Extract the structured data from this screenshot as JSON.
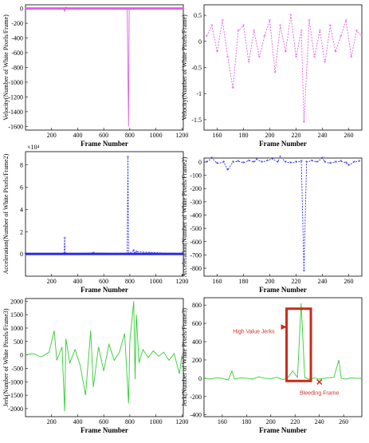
{
  "colors": {
    "velocity": "#e060e0",
    "acceleration": "#2a2ae0",
    "jerk": "#33cc33",
    "annotation": "#cc2a1a"
  },
  "chart_data": [
    {
      "type": "line",
      "panel": "velocity-full",
      "xlabel": "Frame Number",
      "ylabel": "Velocity(Number of White Pixels/Frame)",
      "xlim": [
        0,
        1210
      ],
      "ylim": [
        -1650,
        50
      ],
      "xticks": [
        "200",
        "400",
        "600",
        "800",
        "1000",
        "1200"
      ],
      "yticks": [
        "0",
        "-200",
        "-400",
        "-600",
        "-800",
        "-1000",
        "-1200",
        "-1400",
        "-1600"
      ],
      "series": [
        {
          "x": [
            0,
            290,
            300,
            310,
            320,
            780,
            790,
            795,
            800,
            1200
          ],
          "y": [
            0,
            0,
            -40,
            20,
            0,
            0,
            -1600,
            0,
            0,
            0
          ]
        }
      ]
    },
    {
      "type": "line",
      "panel": "velocity-zoom",
      "xlabel": "Frame Number",
      "ylabel": "Velocity(Number of White Pixels/Frame)",
      "xlim": [
        150,
        270
      ],
      "ylim": [
        -1.7,
        0.7
      ],
      "xticks": [
        "160",
        "180",
        "200",
        "220",
        "240",
        "260"
      ],
      "yticks": [
        "0.5",
        "0",
        "-0.5",
        "-1",
        "-1.5"
      ],
      "series": [
        {
          "x": [
            152,
            156,
            160,
            164,
            168,
            172,
            176,
            180,
            184,
            188,
            192,
            196,
            200,
            204,
            208,
            212,
            216,
            220,
            224,
            226,
            230,
            234,
            238,
            242,
            246,
            250,
            254,
            258,
            262,
            266,
            270
          ],
          "y": [
            0.1,
            0.3,
            -0.2,
            0.4,
            -0.3,
            -0.9,
            0.2,
            0.3,
            -0.4,
            0.2,
            -0.3,
            0.1,
            0.4,
            -0.6,
            0.3,
            -0.2,
            0.5,
            -0.3,
            0.2,
            -1.55,
            0.4,
            -0.3,
            0.2,
            -0.4,
            0.3,
            -0.2,
            0.1,
            0.4,
            -0.3,
            0.2,
            0.1
          ]
        }
      ]
    },
    {
      "type": "line",
      "panel": "acceleration-full",
      "xlabel": "Frame Number",
      "ylabel": "Acceleration(Number of White Pixels/Frame2)",
      "multiplier": "×10⁴",
      "xlim": [
        0,
        1210
      ],
      "ylim": [
        -2,
        9.2
      ],
      "xticks": [
        "200",
        "400",
        "600",
        "800",
        "1000",
        "1200"
      ],
      "yticks": [
        "8",
        "6",
        "4",
        "2",
        "0"
      ],
      "series": [
        {
          "x": [
            0,
            295,
            300,
            305,
            520,
            780,
            785,
            790,
            830,
            840,
            850,
            1200
          ],
          "y": [
            0,
            0,
            1.4,
            0,
            0.1,
            0,
            8.7,
            0,
            0.3,
            0,
            0.2,
            0
          ]
        }
      ]
    },
    {
      "type": "line",
      "panel": "acceleration-zoom",
      "xlabel": "Frame Number",
      "ylabel": "Acceleration(Number of White Pixels/Frame2)",
      "xlim": [
        150,
        270
      ],
      "ylim": [
        -860,
        30
      ],
      "xticks": [
        "160",
        "180",
        "200",
        "220",
        "240",
        "260"
      ],
      "yticks": [
        "0",
        "-100",
        "-200",
        "-300",
        "-400",
        "-500",
        "-600",
        "-700",
        "-800"
      ],
      "series": [
        {
          "x": [
            152,
            156,
            160,
            165,
            168,
            172,
            176,
            180,
            184,
            188,
            190,
            194,
            198,
            202,
            206,
            208,
            212,
            216,
            220,
            224,
            226,
            228,
            232,
            236,
            240,
            242,
            246,
            250,
            254,
            258,
            260,
            264,
            268
          ],
          "y": [
            0,
            30,
            -10,
            0,
            -60,
            0,
            5,
            -5,
            10,
            0,
            20,
            0,
            10,
            25,
            0,
            40,
            0,
            -5,
            0,
            5,
            -820,
            0,
            10,
            0,
            30,
            0,
            -10,
            0,
            5,
            -5,
            -25,
            0,
            5
          ]
        }
      ]
    },
    {
      "type": "line",
      "panel": "jerk-full",
      "xlabel": "Frame Number",
      "ylabel": "Jerk(Number of White Pixels/Frame3)",
      "xlim": [
        0,
        1210
      ],
      "ylim": [
        -2300,
        2100
      ],
      "xticks": [
        "200",
        "400",
        "600",
        "800",
        "1000",
        "1200"
      ],
      "yticks": [
        "2000",
        "1500",
        "1000",
        "500",
        "0",
        "-500",
        "-1000",
        "-1500",
        "-2000"
      ],
      "series": [
        {
          "x": [
            0,
            60,
            120,
            180,
            220,
            240,
            280,
            300,
            310,
            340,
            380,
            420,
            460,
            500,
            520,
            560,
            600,
            640,
            680,
            720,
            760,
            790,
            800,
            830,
            840,
            850,
            870,
            900,
            940,
            980,
            1020,
            1060,
            1100,
            1140,
            1180,
            1200
          ],
          "y": [
            0,
            50,
            -80,
            100,
            900,
            -200,
            300,
            -2100,
            600,
            -300,
            200,
            -400,
            -1500,
            900,
            -1200,
            300,
            -600,
            400,
            -200,
            100,
            800,
            -1800,
            500,
            2000,
            -900,
            1500,
            -300,
            200,
            -100,
            150,
            -50,
            100,
            -200,
            50,
            -700,
            0
          ]
        }
      ]
    },
    {
      "type": "line",
      "panel": "jerk-zoom",
      "xlabel": "Frame Number",
      "ylabel": "Jerk(Number of White Pixels/Frame3)",
      "xlim": [
        145,
        275
      ],
      "ylim": [
        -420,
        880
      ],
      "xticks": [
        "160",
        "180",
        "200",
        "220",
        "240",
        "260"
      ],
      "yticks": [
        "800",
        "600",
        "400",
        "200",
        "0",
        "-200",
        "-400"
      ],
      "series": [
        {
          "x": [
            145,
            150,
            155,
            160,
            165,
            168,
            170,
            175,
            180,
            185,
            190,
            195,
            200,
            205,
            210,
            214,
            218,
            222,
            225,
            228,
            232,
            236,
            240,
            244,
            248,
            252,
            256,
            258,
            262,
            266,
            270,
            275
          ],
          "y": [
            0,
            -10,
            5,
            0,
            -20,
            80,
            -10,
            5,
            0,
            -10,
            15,
            0,
            -5,
            10,
            -15,
            5,
            80,
            10,
            820,
            10,
            -15,
            5,
            -10,
            0,
            5,
            10,
            200,
            0,
            -10,
            5,
            0,
            0
          ]
        }
      ],
      "annotations": [
        "High Value Jerks",
        "Bleeding Frame"
      ]
    }
  ]
}
